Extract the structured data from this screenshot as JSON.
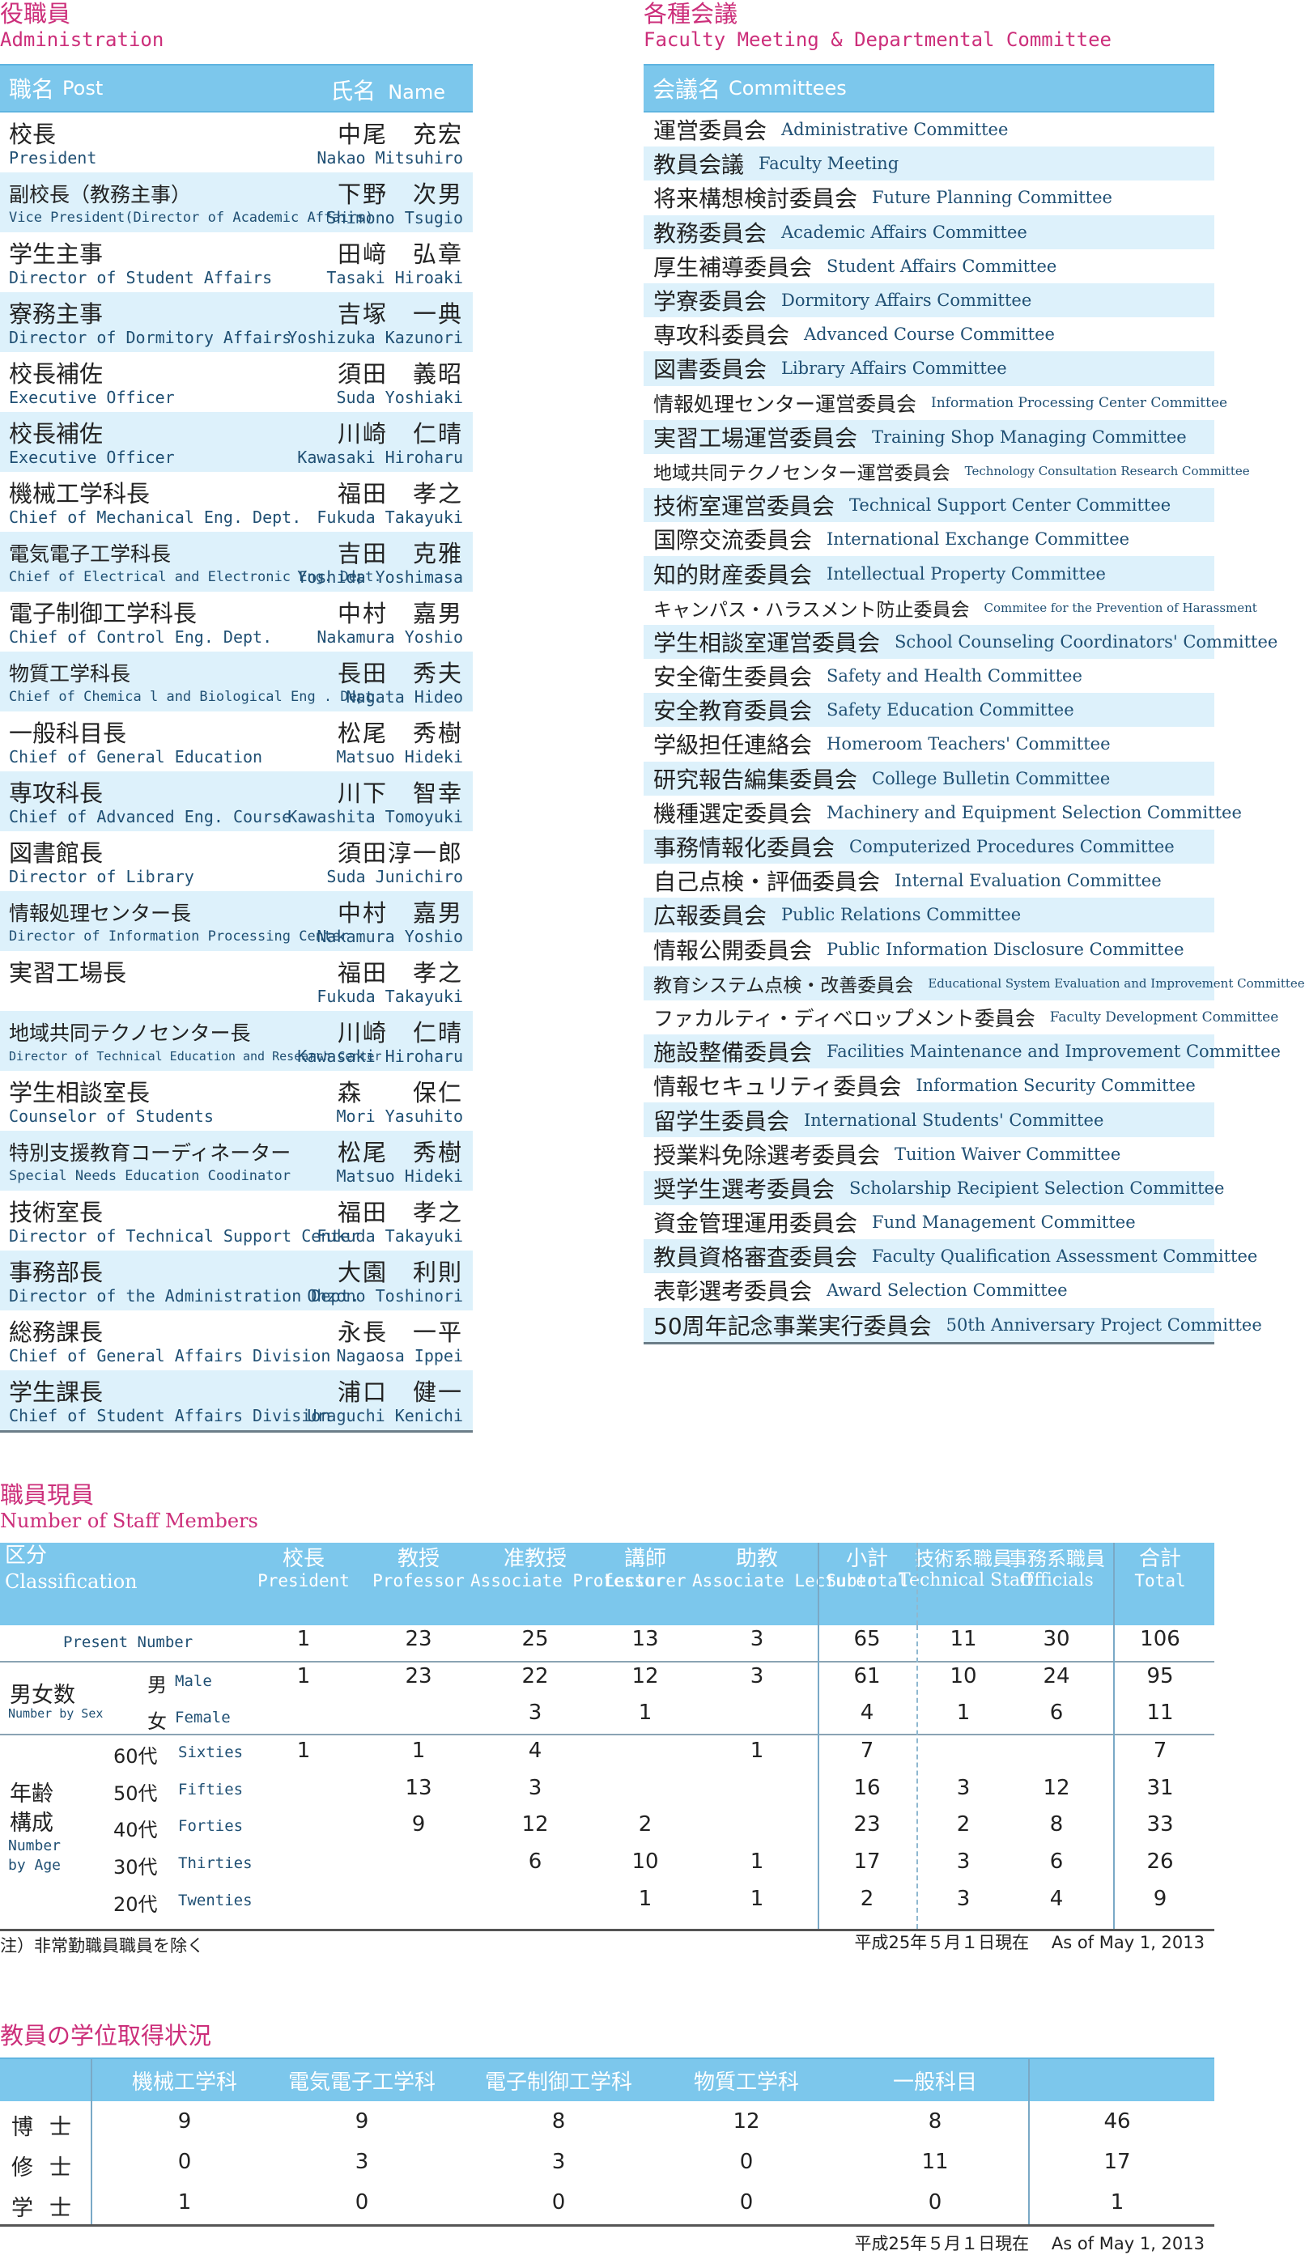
{
  "admin": {
    "title": "役職員",
    "subtitle": "Administration",
    "col_post_jp": "職名",
    "col_post_en": "Post",
    "col_name_jp": "氏名",
    "col_name_en": "Name",
    "rows": [
      {
        "post": "校長",
        "post_en": "President",
        "name": "中尾　充宏",
        "name_en": "Nakao Mitsuhiro"
      },
      {
        "post": "副校長（教務主事）",
        "post_en": "Vice President(Director of Academic Affairs)",
        "name": "下野　次男",
        "name_en": "Shimono Tsugio"
      },
      {
        "post": "学生主事",
        "post_en": "Director of Student Affairs",
        "name": "田﨑　弘章",
        "name_en": "Tasaki Hiroaki"
      },
      {
        "post": "寮務主事",
        "post_en": "Director of Dormitory Affairs",
        "name": "吉塚　一典",
        "name_en": "Yoshizuka Kazunori"
      },
      {
        "post": "校長補佐",
        "post_en": "Executive Officer",
        "name": "須田　義昭",
        "name_en": "Suda Yoshiaki"
      },
      {
        "post": "校長補佐",
        "post_en": "Executive Officer",
        "name": "川崎　仁晴",
        "name_en": "Kawasaki Hiroharu"
      },
      {
        "post": "機械工学科長",
        "post_en": "Chief of Mechanical Eng. Dept.",
        "name": "福田　孝之",
        "name_en": "Fukuda Takayuki"
      },
      {
        "post": "電気電子工学科長",
        "post_en": "Chief of Electrical and Electronic Eng. Dept.",
        "name": "吉田　克雅",
        "name_en": "Yoshida Yoshimasa"
      },
      {
        "post": "電子制御工学科長",
        "post_en": "Chief of Control Eng. Dept.",
        "name": "中村　嘉男",
        "name_en": "Nakamura Yoshio"
      },
      {
        "post": "物質工学科長",
        "post_en": "Chief of Chemica l and Biological Eng . Dept.",
        "name": "長田　秀夫",
        "name_en": "Nagata Hideo"
      },
      {
        "post": "一般科目長",
        "post_en": "Chief of General Education",
        "name": "松尾　秀樹",
        "name_en": "Matsuo Hideki"
      },
      {
        "post": "専攻科長",
        "post_en": "Chief of Advanced Eng. Course",
        "name": "川下　智幸",
        "name_en": "Kawashita Tomoyuki"
      },
      {
        "post": "図書館長",
        "post_en": "Director of Library",
        "name": "須田淳一郎",
        "name_en": "Suda Junichiro"
      },
      {
        "post": "情報処理センター長",
        "post_en": "Director of Information Processing Center",
        "name": "中村　嘉男",
        "name_en": "Nakamura Yoshio"
      },
      {
        "post": "実習工場長",
        "post_en": "",
        "name": "福田　孝之",
        "name_en": "Fukuda Takayuki"
      },
      {
        "post": "地域共同テクノセンター長",
        "post_en": "Director of Technical Education and Research Center",
        "name": "川崎　仁晴",
        "name_en": "Kawasaki Hiroharu"
      },
      {
        "post": "学生相談室長",
        "post_en": "Counselor of Students",
        "name": "森　　保仁",
        "name_en": "Mori Yasuhito"
      },
      {
        "post": "特別支援教育コーディネーター",
        "post_en": "Special Needs Education Coodinator",
        "name": "松尾　秀樹",
        "name_en": "Matsuo Hideki"
      },
      {
        "post": "技術室長",
        "post_en": "Director of Technical Support Center",
        "name": "福田　孝之",
        "name_en": "Fukuda Takayuki"
      },
      {
        "post": "事務部長",
        "post_en": "Director of the Administration Dept.",
        "name": "大園　利則",
        "name_en": "Ohzono Toshinori"
      },
      {
        "post": "総務課長",
        "post_en": "Chief of General Affairs Division",
        "name": "永長　一平",
        "name_en": "Nagaosa Ippei"
      },
      {
        "post": "学生課長",
        "post_en": "Chief of Student Affairs Division",
        "name": "浦口　健一",
        "name_en": "Uraguchi Kenichi"
      }
    ]
  },
  "committees": {
    "title": "各種会議",
    "subtitle": "Faculty Meeting & Departmental Committee",
    "col_jp": "会議名",
    "col_en": "Committees",
    "rows": [
      {
        "jp": "運営委員会",
        "en": "Administrative Committee"
      },
      {
        "jp": "教員会議",
        "en": "Faculty Meeting"
      },
      {
        "jp": "将来構想検討委員会",
        "en": "Future Planning Committee"
      },
      {
        "jp": "教務委員会",
        "en": "Academic Affairs Committee"
      },
      {
        "jp": "厚生補導委員会",
        "en": "Student Affairs Committee"
      },
      {
        "jp": "学寮委員会",
        "en": "Dormitory Affairs Committee"
      },
      {
        "jp": "専攻科委員会",
        "en": "Advanced Course Committee"
      },
      {
        "jp": "図書委員会",
        "en": "Library Affairs Committee"
      },
      {
        "jp": "情報処理センター運営委員会",
        "en": "Information Processing Center Committee"
      },
      {
        "jp": "実習工場運営委員会",
        "en": "Training Shop Managing Committee"
      },
      {
        "jp": "地域共同テクノセンター運営委員会",
        "en": "Technology Consultation Research Committee"
      },
      {
        "jp": "技術室運営委員会",
        "en": "Technical Support Center Committee"
      },
      {
        "jp": "国際交流委員会",
        "en": "International Exchange Committee"
      },
      {
        "jp": "知的財産委員会",
        "en": "Intellectual Property Committee"
      },
      {
        "jp": "キャンパス・ハラスメント防止委員会",
        "en": "Commitee for the Prevention of Harassment"
      },
      {
        "jp": "学生相談室運営委員会",
        "en": "School Counseling Coordinators' Committee"
      },
      {
        "jp": "安全衛生委員会",
        "en": "Safety and Health Committee"
      },
      {
        "jp": "安全教育委員会",
        "en": "Safety Education Committee"
      },
      {
        "jp": "学級担任連絡会",
        "en": "Homeroom Teachers' Committee"
      },
      {
        "jp": "研究報告編集委員会",
        "en": "College Bulletin Committee"
      },
      {
        "jp": "機種選定委員会",
        "en": "Machinery and Equipment Selection Committee"
      },
      {
        "jp": "事務情報化委員会",
        "en": "Computerized Procedures Committee"
      },
      {
        "jp": "自己点検・評価委員会",
        "en": "Internal Evaluation Committee"
      },
      {
        "jp": "広報委員会",
        "en": "Public Relations Committee"
      },
      {
        "jp": "情報公開委員会",
        "en": "Public Information Disclosure Committee"
      },
      {
        "jp": "教育システム点検・改善委員会",
        "en": "Educational System Evaluation and Improvement Committee"
      },
      {
        "jp": "ファカルティ・ディベロップメント委員会",
        "en": "Faculty Development Committee"
      },
      {
        "jp": "施設整備委員会",
        "en": "Facilities Maintenance and Improvement Committee"
      },
      {
        "jp": "情報セキュリティ委員会",
        "en": "Information Security Committee"
      },
      {
        "jp": "留学生委員会",
        "en": "International Students' Committee"
      },
      {
        "jp": "授業料免除選考委員会",
        "en": "Tuition Waiver Committee"
      },
      {
        "jp": "奨学生選考委員会",
        "en": "Scholarship Recipient Selection Committee"
      },
      {
        "jp": "資金管理運用委員会",
        "en": "Fund Management Committee"
      },
      {
        "jp": "教員資格審査委員会",
        "en": "Faculty Qualification Assessment Committee"
      },
      {
        "jp": "表彰選考委員会",
        "en": "Award Selection Committee"
      },
      {
        "jp": "50周年記念事業実行委員会",
        "en": "50th Anniversary Project Committee"
      }
    ]
  },
  "staff": {
    "title": "職員現員",
    "subtitle": "Number of Staff Members",
    "class_jp": "区分",
    "class_en": "Classification",
    "columns": [
      {
        "jp": "校長",
        "en": "President"
      },
      {
        "jp": "教授",
        "en": "Professor"
      },
      {
        "jp": "准教授",
        "en": "Associate Professor"
      },
      {
        "jp": "講師",
        "en": "Lecturer"
      },
      {
        "jp": "助教",
        "en": "Associate Lecturer"
      },
      {
        "jp": "小計",
        "en": "Subtotal"
      },
      {
        "jp": "技術系職員",
        "en": "Technical Staff"
      },
      {
        "jp": "事務系職員",
        "en": "Officials"
      },
      {
        "jp": "合計",
        "en": "Total"
      }
    ],
    "present_label": "Present Number",
    "sex_jp": "男女数",
    "sex_en": "Number by Sex",
    "male_jp": "男",
    "male_en": "Male",
    "female_jp": "女",
    "female_en": "Female",
    "age_jp_1": "年齢",
    "age_jp_2": "構成",
    "age_en_1": "Number",
    "age_en_2": "by Age",
    "age_rows": [
      {
        "jp": "60代",
        "en": "Sixties"
      },
      {
        "jp": "50代",
        "en": "Fifties"
      },
      {
        "jp": "40代",
        "en": "Forties"
      },
      {
        "jp": "30代",
        "en": "Thirties"
      },
      {
        "jp": "20代",
        "en": "Twenties"
      }
    ],
    "values": [
      [
        "1",
        "23",
        "25",
        "13",
        "3",
        "65",
        "11",
        "30",
        "106"
      ],
      [
        "1",
        "23",
        "22",
        "12",
        "3",
        "61",
        "10",
        "24",
        "95"
      ],
      [
        "",
        "",
        "3",
        "1",
        "",
        "4",
        "1",
        "6",
        "11"
      ],
      [
        "1",
        "1",
        "4",
        "",
        "1",
        "7",
        "",
        "",
        "7"
      ],
      [
        "",
        "13",
        "3",
        "",
        "",
        "16",
        "3",
        "12",
        "31"
      ],
      [
        "",
        "9",
        "12",
        "2",
        "",
        "23",
        "2",
        "8",
        "33"
      ],
      [
        "",
        "",
        "6",
        "10",
        "1",
        "17",
        "3",
        "6",
        "26"
      ],
      [
        "",
        "",
        "",
        "1",
        "1",
        "2",
        "3",
        "4",
        "9"
      ]
    ],
    "note": "注）非常勤職員職員を除く",
    "date": "平成25年５月１日現在　 As of May 1, 2013"
  },
  "degrees": {
    "title": "教員の学位取得状況",
    "columns": [
      "機械工学科",
      "電気電子工学科",
      "電子制御工学科",
      "物質工学科",
      "一般科目"
    ],
    "rows": [
      {
        "label": "博士",
        "values": [
          "9",
          "9",
          "8",
          "12",
          "8",
          "46"
        ]
      },
      {
        "label": "修士",
        "values": [
          "0",
          "3",
          "3",
          "0",
          "11",
          "17"
        ]
      },
      {
        "label": "学士",
        "values": [
          "1",
          "0",
          "0",
          "0",
          "0",
          "1"
        ]
      }
    ],
    "date": "平成25年５月１日現在　 As of May 1, 2013"
  }
}
